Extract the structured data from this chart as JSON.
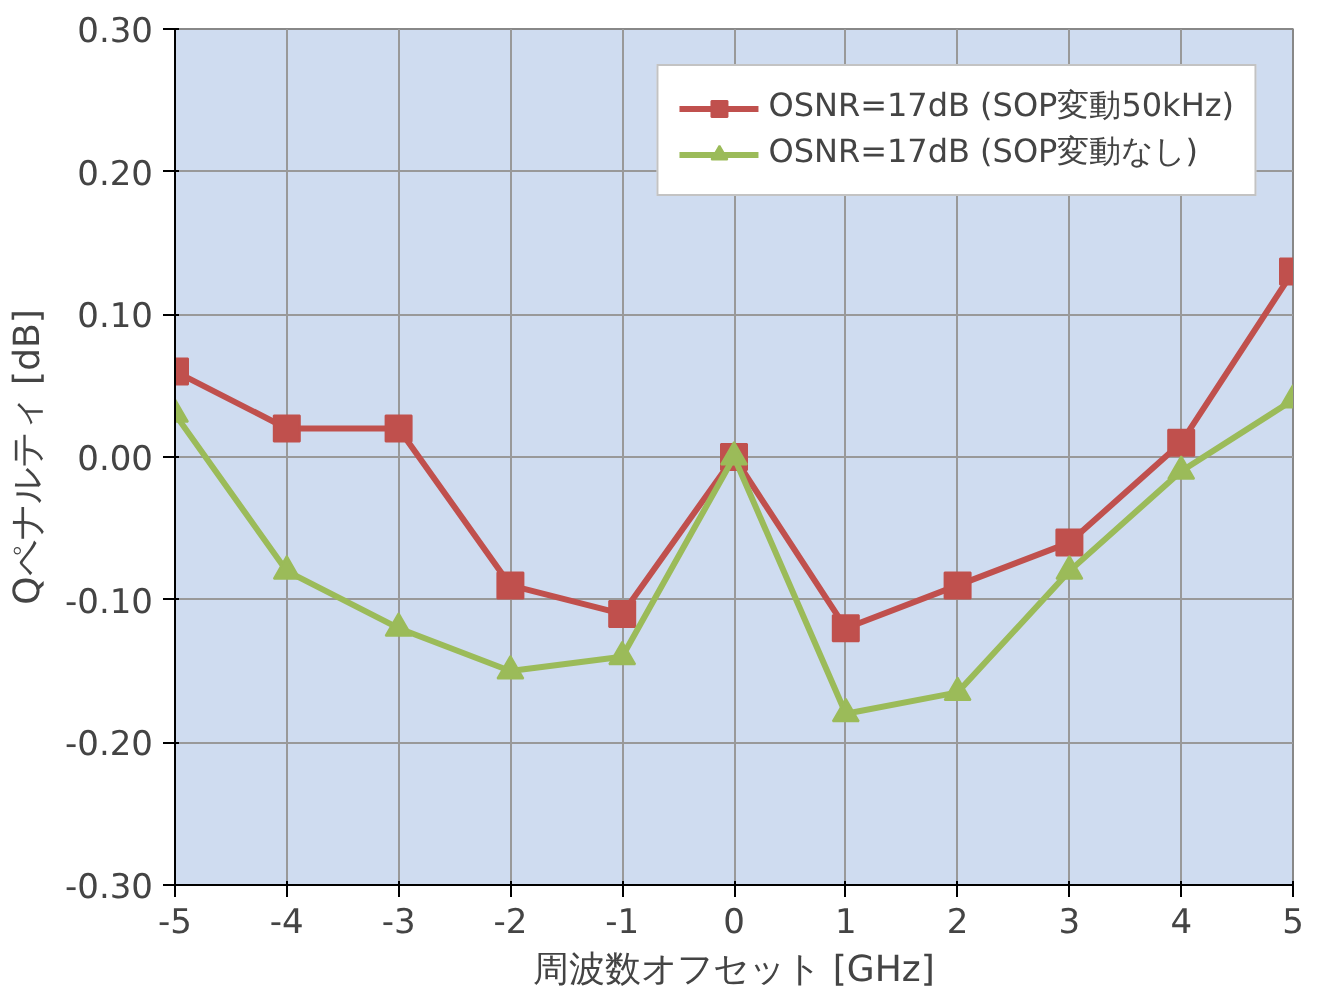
{
  "chart_data": {
    "type": "line",
    "xlabel": "周波数オフセット [GHz]",
    "ylabel": "Qペナルティ [dB]",
    "x": [
      -5,
      -4,
      -3,
      -2,
      -1,
      0,
      1,
      2,
      3,
      4,
      5
    ],
    "series": [
      {
        "name": "OSNR=17dB (SOP変動50kHz)",
        "color": "#c0504d",
        "marker": "square",
        "values": [
          0.06,
          0.02,
          0.02,
          -0.09,
          -0.11,
          0.0,
          -0.12,
          -0.09,
          -0.06,
          0.01,
          0.13
        ]
      },
      {
        "name": "OSNR=17dB (SOP変動なし)",
        "color": "#9bbb59",
        "marker": "triangle",
        "values": [
          0.03,
          -0.08,
          -0.12,
          -0.15,
          -0.14,
          0.0,
          -0.18,
          -0.165,
          -0.08,
          -0.01,
          0.04
        ]
      }
    ],
    "xlim": [
      -5,
      5
    ],
    "xticks": [
      -5,
      -4,
      -3,
      -2,
      -1,
      0,
      1,
      2,
      3,
      4,
      5
    ],
    "ylim": [
      -0.3,
      0.3
    ],
    "yticks": [
      {
        "value": -0.3,
        "label": "-0.30"
      },
      {
        "value": -0.2,
        "label": "-0.20"
      },
      {
        "value": -0.1,
        "label": "-0.10"
      },
      {
        "value": 0,
        "label": "0.00"
      },
      {
        "value": 0.1,
        "label": "0.10"
      },
      {
        "value": 0.2,
        "label": "0.20"
      },
      {
        "value": 0.3,
        "label": "0.30"
      }
    ],
    "grid": true,
    "legend": "top right",
    "line_style": "solid"
  }
}
